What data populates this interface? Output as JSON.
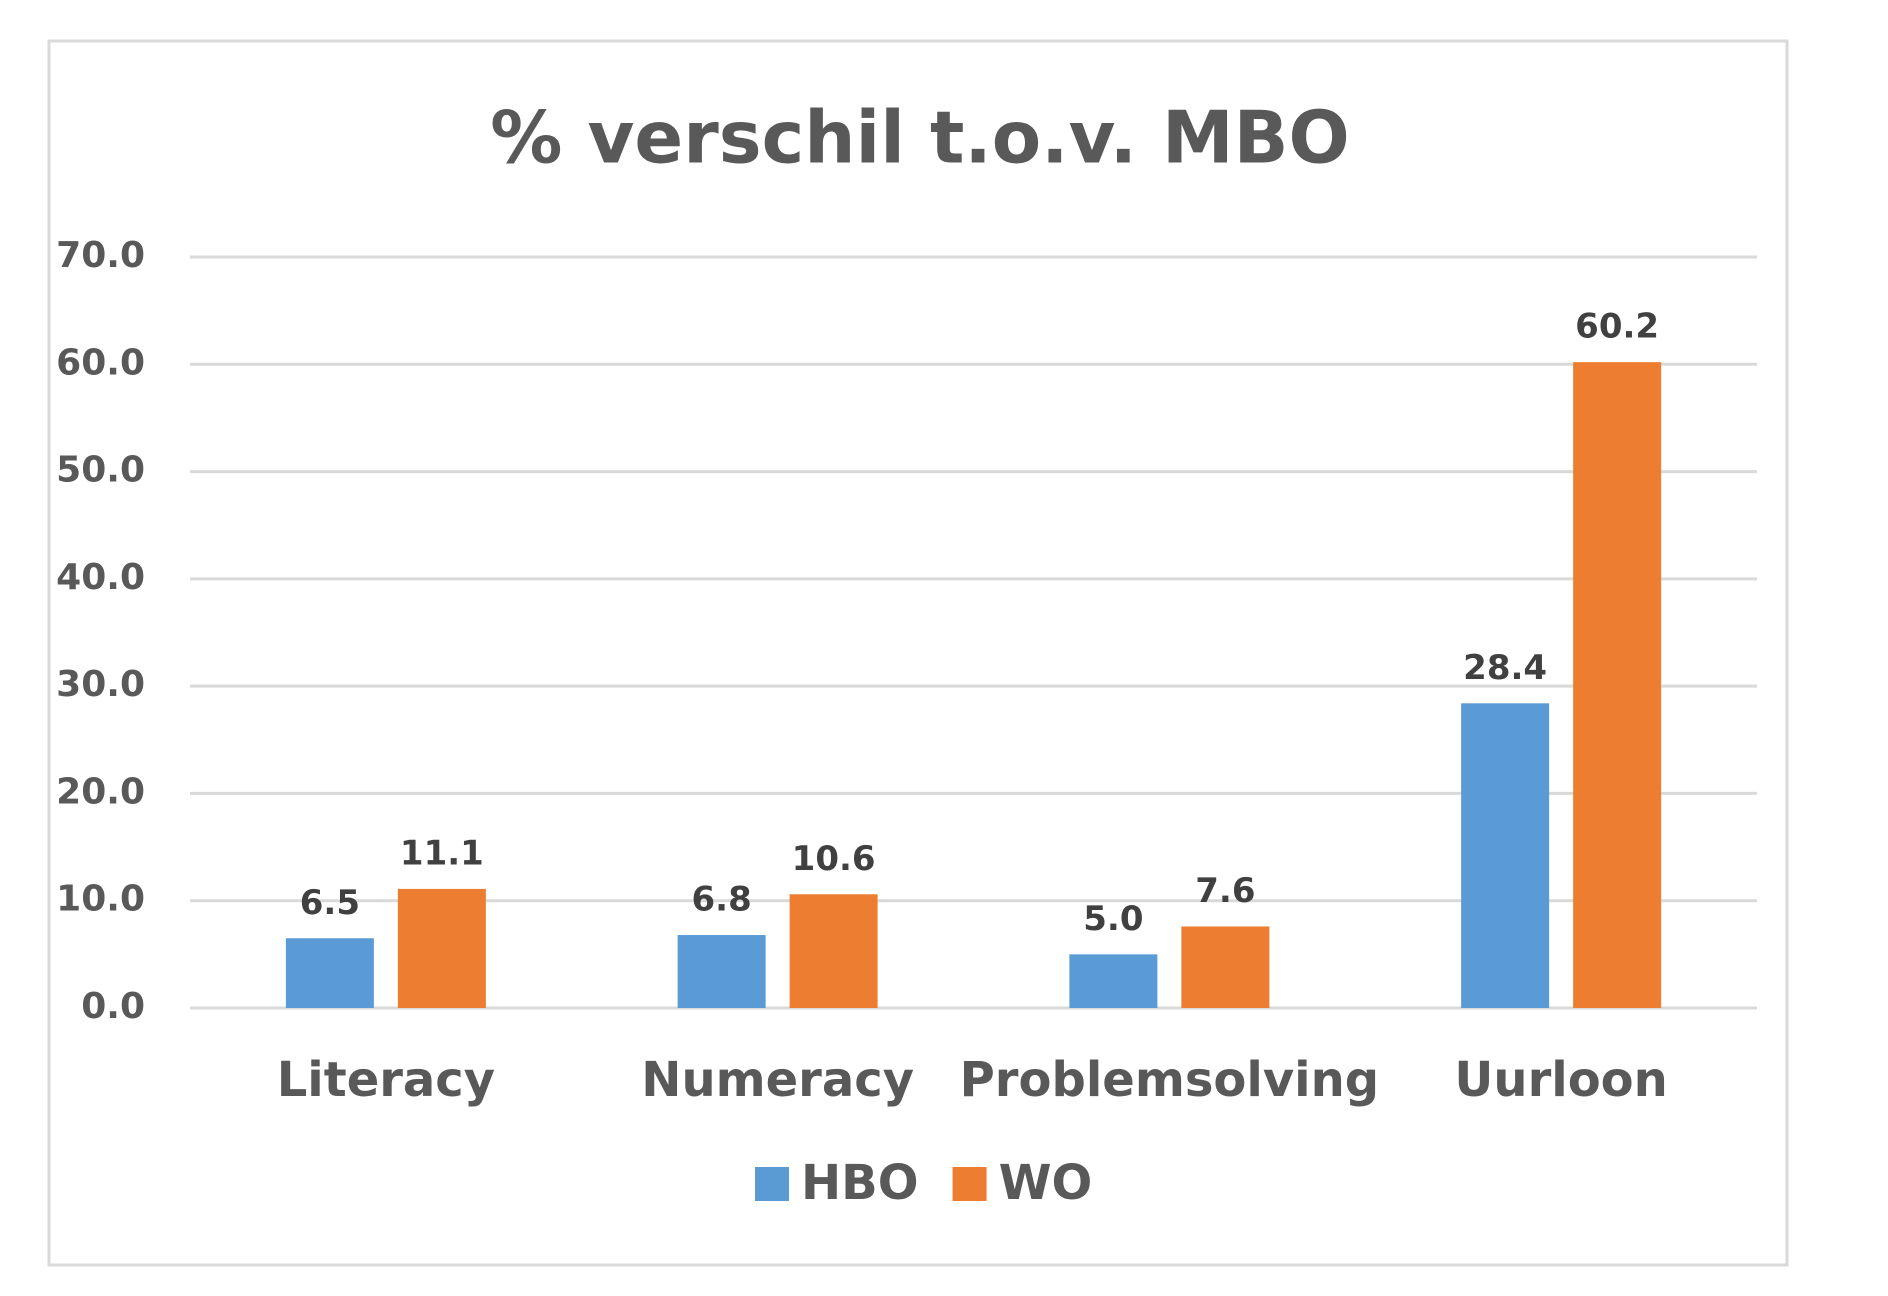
{
  "chart_data": {
    "type": "bar",
    "title": "% verschil t.o.v. MBO",
    "categories": [
      "Literacy",
      "Numeracy",
      "Problemsolving",
      "Uurloon"
    ],
    "series": [
      {
        "name": "HBO",
        "color": "#5b9bd5",
        "values": [
          6.5,
          6.8,
          5.0,
          28.4
        ],
        "value_labels": [
          "6.5",
          "6.8",
          "5.0",
          "28.4"
        ]
      },
      {
        "name": "WO",
        "color": "#ed7d31",
        "values": [
          11.1,
          10.6,
          7.6,
          60.2
        ],
        "value_labels": [
          "11.1",
          "10.6",
          "7.6",
          "60.2"
        ]
      }
    ],
    "ylim": [
      0,
      70
    ],
    "yticks": [
      {
        "value": 0,
        "label": "0.0"
      },
      {
        "value": 10,
        "label": "10.0"
      },
      {
        "value": 20,
        "label": "20.0"
      },
      {
        "value": 30,
        "label": "30.0"
      },
      {
        "value": 40,
        "label": "40.0"
      },
      {
        "value": 50,
        "label": "50.0"
      },
      {
        "value": 60,
        "label": "60.0"
      },
      {
        "value": 70,
        "label": "70.0"
      }
    ],
    "grid": true,
    "legend": "bottom"
  }
}
